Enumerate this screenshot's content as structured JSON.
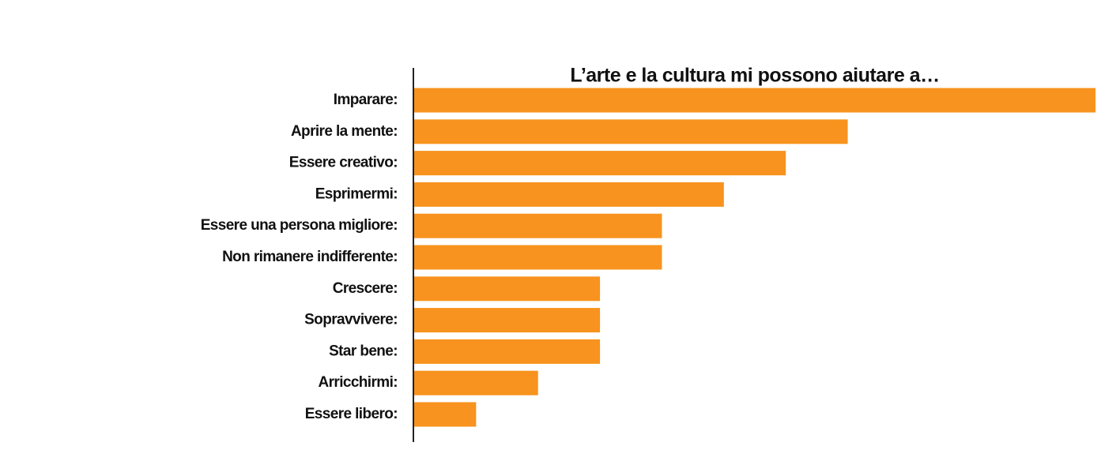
{
  "chart_data": {
    "type": "barh",
    "title": "L’arte e la cultura mi possono aiutare a…",
    "categories": [
      "Imparare:",
      "Aprire la mente:",
      "Essere creativo:",
      "Esprimermi:",
      "Essere una persona migliore:",
      "Non rimanere indifferente:",
      "Crescere:",
      "Sopravvivere:",
      "Star bene:",
      "Arricchirmi:",
      "Essere libero:"
    ],
    "values": [
      11,
      7,
      6,
      5,
      4,
      4,
      3,
      3,
      3,
      2,
      1
    ],
    "color": "#f7931e",
    "xlim": [
      0,
      11
    ]
  }
}
